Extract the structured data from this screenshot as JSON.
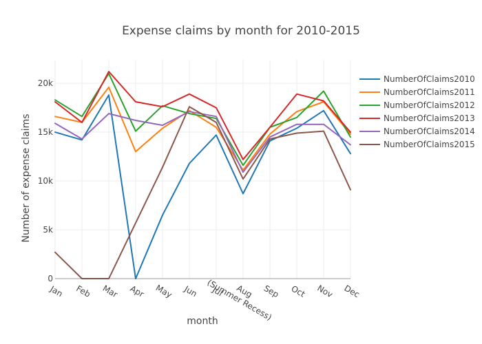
{
  "chart_data": {
    "type": "line",
    "title": "Expense claims by month for 2010-2015",
    "xlabel": "month",
    "ylabel": "Number of expense claims",
    "categories": [
      "Jan",
      "Feb",
      "Mar",
      "Apr",
      "May",
      "Jun",
      "Jul",
      "Aug\n(Summer Recess)",
      "Sep",
      "Oct",
      "Nov",
      "Dec"
    ],
    "ylim": [
      0,
      22400
    ],
    "y_ticks": [
      0,
      5000,
      10000,
      15000,
      20000
    ],
    "y_tick_labels": [
      "0",
      "5k",
      "10k",
      "15k",
      "20k"
    ],
    "grid": true,
    "legend_position": "top-right",
    "series": [
      {
        "name": "NumberOfClaims2010",
        "color": "#1f77b4",
        "values": [
          15000,
          14200,
          18800,
          0,
          6500,
          11800,
          14700,
          8700,
          14100,
          15400,
          17200,
          12800
        ]
      },
      {
        "name": "NumberOfClaims2011",
        "color": "#ff7f0e",
        "values": [
          16600,
          16000,
          19600,
          13000,
          15400,
          17200,
          15500,
          11100,
          14800,
          17100,
          18100,
          14800
        ]
      },
      {
        "name": "NumberOfClaims2012",
        "color": "#2ca02c",
        "values": [
          18300,
          16600,
          21000,
          15100,
          17700,
          16900,
          16400,
          11600,
          15500,
          16500,
          19200,
          14500
        ]
      },
      {
        "name": "NumberOfClaims2013",
        "color": "#d62728",
        "values": [
          18100,
          16000,
          21200,
          18100,
          17600,
          18900,
          17500,
          12200,
          15500,
          18900,
          18200,
          15000
        ]
      },
      {
        "name": "NumberOfClaims2014",
        "color": "#9467bd",
        "values": [
          15900,
          14300,
          16900,
          16200,
          15700,
          17100,
          16600,
          10900,
          14500,
          15800,
          15800,
          13700
        ]
      },
      {
        "name": "NumberOfClaims2015",
        "color": "#8c564b",
        "values": [
          2700,
          0,
          0,
          5700,
          11400,
          17600,
          16000,
          10200,
          14300,
          14900,
          15100,
          9100
        ]
      }
    ]
  }
}
